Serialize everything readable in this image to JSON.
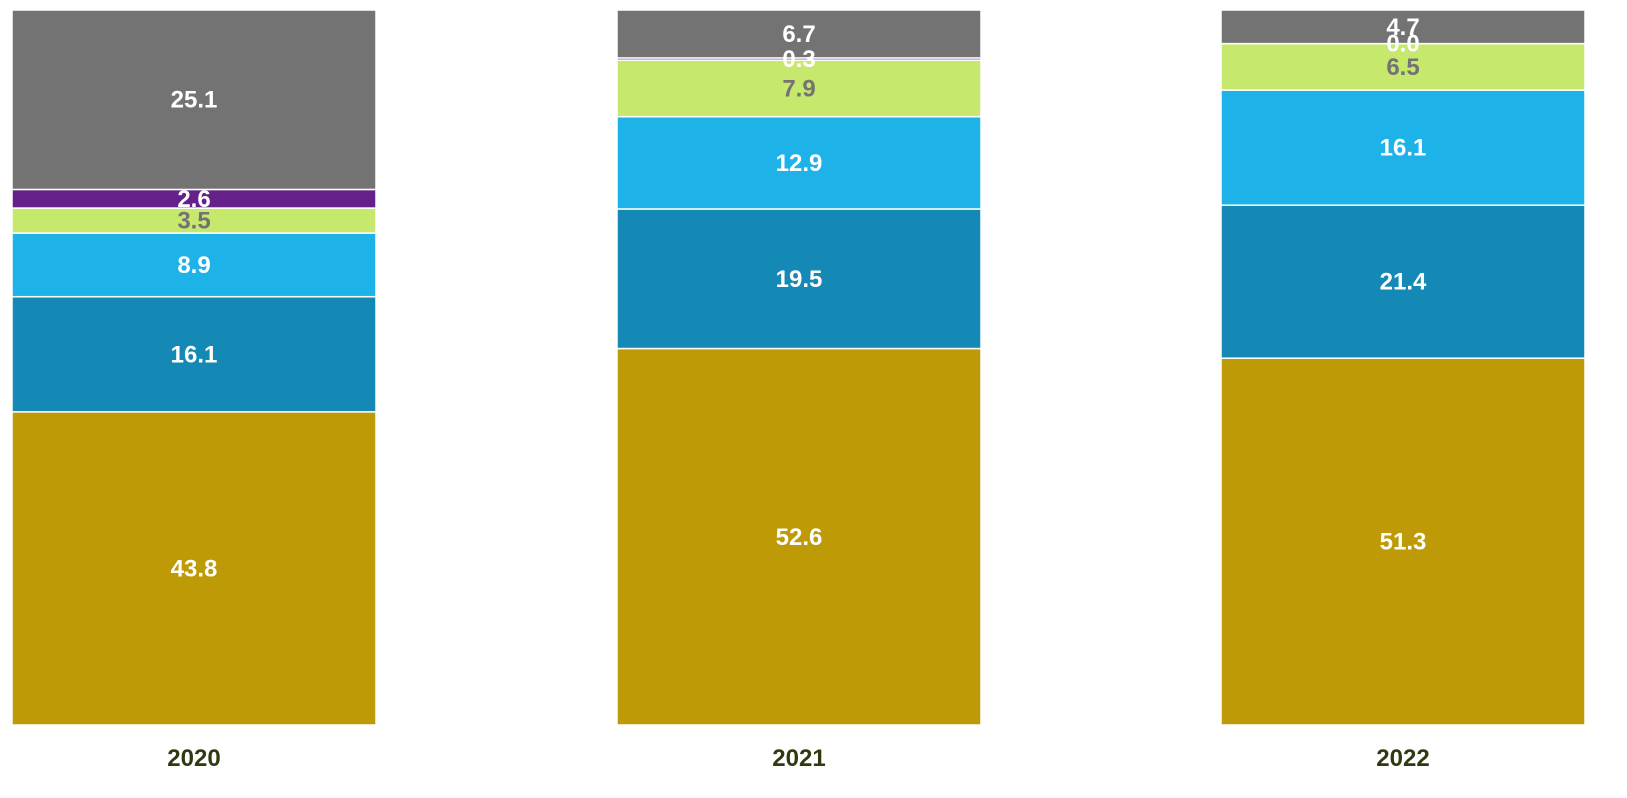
{
  "chart_data": {
    "type": "bar",
    "stacked": true,
    "normalized_to_percent": true,
    "categories": [
      "2020",
      "2021",
      "2022"
    ],
    "ylim": [
      0,
      100
    ],
    "grid": false,
    "legend": "none",
    "category_label_color": "#2f3a10",
    "series": [
      {
        "values": [
          43.8,
          52.6,
          51.3
        ],
        "color": "#bd9a06",
        "label_color": "#ffffff"
      },
      {
        "values": [
          16.1,
          19.5,
          21.4
        ],
        "color": "#1489b5",
        "label_color": "#ffffff"
      },
      {
        "values": [
          8.9,
          12.9,
          16.1
        ],
        "color": "#1eb3e8",
        "label_color": "#ffffff"
      },
      {
        "values": [
          3.5,
          7.9,
          6.5
        ],
        "color": "#c6e86c",
        "label_color": "#737373"
      },
      {
        "values": [
          2.6,
          0.3,
          0.0
        ],
        "color": "#65208a",
        "label_color": "#ffffff"
      },
      {
        "values": [
          25.1,
          6.7,
          4.7
        ],
        "color": "#737373",
        "label_color": "#ffffff"
      }
    ],
    "value_labels": [
      [
        "43.8",
        "52.6",
        "51.3"
      ],
      [
        "16.1",
        "19.5",
        "21.4"
      ],
      [
        "8.9",
        "12.9",
        "16.1"
      ],
      [
        "3.5",
        "7.9",
        "6.5"
      ],
      [
        "2.6",
        "0.3",
        "0.0"
      ],
      [
        "25.1",
        "6.7",
        "4.7"
      ]
    ]
  }
}
